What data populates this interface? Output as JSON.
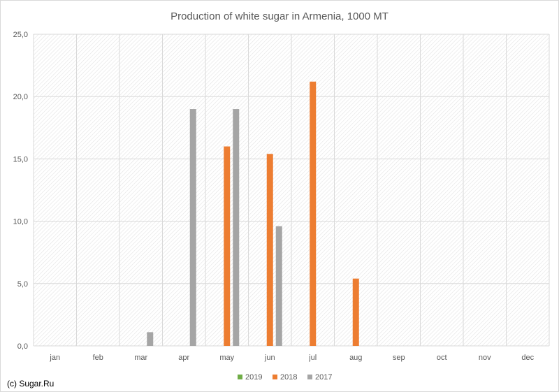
{
  "chart_data": {
    "type": "bar",
    "title": "Production of white sugar in Armenia, 1000 MT",
    "categories": [
      "jan",
      "feb",
      "mar",
      "apr",
      "may",
      "jun",
      "jul",
      "aug",
      "sep",
      "oct",
      "nov",
      "dec"
    ],
    "series": [
      {
        "name": "2019",
        "color": "#70ad47",
        "values": [
          null,
          null,
          null,
          null,
          null,
          null,
          null,
          null,
          null,
          null,
          null,
          null
        ]
      },
      {
        "name": "2018",
        "color": "#ed7d31",
        "values": [
          null,
          null,
          null,
          null,
          16.0,
          15.4,
          21.2,
          5.4,
          null,
          null,
          null,
          null
        ]
      },
      {
        "name": "2017",
        "color": "#a5a5a5",
        "values": [
          null,
          null,
          1.1,
          19.0,
          19.0,
          9.6,
          null,
          null,
          null,
          null,
          null,
          null
        ]
      }
    ],
    "ylim": [
      0,
      25
    ],
    "yticks": [
      "0,0",
      "5,0",
      "10,0",
      "15,0",
      "20,0",
      "25,0"
    ],
    "grid": true,
    "legend_position": "bottom"
  },
  "watermark": "(c) Sugar.Ru"
}
